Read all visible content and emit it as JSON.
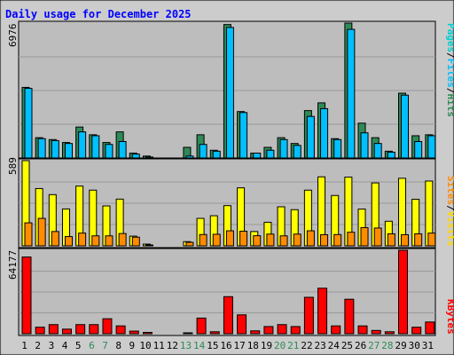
{
  "chart_data": {
    "type": "bar",
    "title": "Daily usage for December 2025",
    "categories": [
      "1",
      "2",
      "3",
      "4",
      "5",
      "6",
      "7",
      "8",
      "9",
      "10",
      "11",
      "12",
      "13",
      "14",
      "15",
      "16",
      "17",
      "18",
      "19",
      "20",
      "21",
      "22",
      "23",
      "24",
      "25",
      "26",
      "27",
      "28",
      "29",
      "30",
      "31"
    ],
    "weekend_days": [
      "6",
      "7",
      "13",
      "14",
      "20",
      "21",
      "27",
      "28"
    ],
    "panels": [
      {
        "name": "top",
        "ymax_label": "6976",
        "ymax": 6976,
        "legend": [
          "Pages",
          "/",
          "Files",
          "/",
          "Hits"
        ],
        "series": [
          {
            "name": "Hits",
            "color": "#2e8b57",
            "values": [
              3650,
              1050,
              950,
              800,
              1600,
              1200,
              800,
              1350,
              250,
              100,
              0,
              0,
              550,
              1200,
              400,
              6900,
              2400,
              250,
              550,
              1050,
              750,
              2450,
              2850,
              1000,
              6976,
              1800,
              1050,
              350,
              3350,
              1150,
              1200
            ]
          },
          {
            "name": "Files",
            "color": "#00bfff",
            "values": [
              3600,
              1000,
              900,
              750,
              1350,
              1150,
              700,
              850,
              200,
              50,
              0,
              0,
              100,
              700,
              350,
              6750,
              2350,
              250,
              400,
              950,
              650,
              2150,
              2550,
              950,
              6650,
              1300,
              750,
              300,
              3250,
              850,
              1150
            ]
          },
          {
            "name": "Pages",
            "color": "#00ced1",
            "values": [
              0,
              0,
              0,
              0,
              0,
              0,
              0,
              0,
              0,
              0,
              0,
              0,
              0,
              0,
              0,
              0,
              0,
              0,
              0,
              0,
              0,
              0,
              0,
              0,
              0,
              0,
              0,
              0,
              0,
              0,
              0
            ]
          }
        ]
      },
      {
        "name": "middle",
        "ymax_label": "589",
        "ymax": 589,
        "legend": [
          "Sites",
          "/",
          "Visits"
        ],
        "series": [
          {
            "name": "Visits",
            "color": "#ffff00",
            "values": [
              589,
              396,
              354,
              255,
              413,
              385,
              276,
              323,
              67,
              12,
              0,
              0,
              29,
              190,
              208,
              278,
              401,
              99,
              163,
              270,
              250,
              385,
              477,
              348,
              475,
              254,
              435,
              170,
              467,
              322,
              448
            ]
          },
          {
            "name": "Sites",
            "color": "#ff8c00",
            "values": [
              159,
              190,
              99,
              64,
              88,
              69,
              69,
              85,
              60,
              6,
              0,
              0,
              24,
              78,
              80,
              104,
              101,
              70,
              81,
              69,
              81,
              104,
              77,
              78,
              94,
              126,
              123,
              83,
              77,
              83,
              88
            ]
          }
        ]
      },
      {
        "name": "bottom",
        "ymax_label": "64177",
        "ymax": 64177,
        "legend": [
          "KBytes"
        ],
        "series": [
          {
            "name": "KBytes",
            "color": "#ff0000",
            "values": [
              59000,
              5000,
              7000,
              3500,
              7000,
              7000,
              11500,
              6000,
              2000,
              1000,
              0,
              0,
              600,
              12000,
              1500,
              28500,
              14500,
              2200,
              5500,
              7000,
              5500,
              28000,
              35000,
              6000,
              26500,
              6000,
              2500,
              1500,
              64177,
              5000,
              9000
            ]
          }
        ]
      }
    ]
  }
}
